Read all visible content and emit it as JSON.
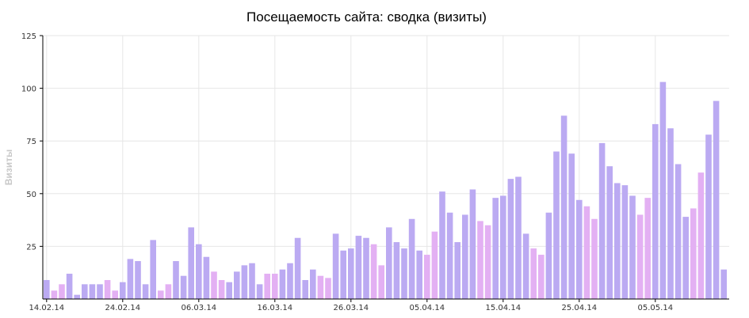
{
  "chart_data": {
    "type": "bar",
    "title": "Посещаемость сайта: сводка (визиты)",
    "ylabel": "Визиты",
    "xlabel": "",
    "ylim": [
      0,
      125
    ],
    "yticks": [
      "25",
      "50",
      "75",
      "100",
      "125"
    ],
    "grid": true,
    "legend": "none",
    "start_date": "14.02.14",
    "x_tick_labels": [
      {
        "index": 0,
        "label": "14.02.14",
        "color": "#333333"
      },
      {
        "index": 10,
        "label": "24.02.14",
        "color": "#333333"
      },
      {
        "index": 20,
        "label": "06.03.14",
        "color": "#333333"
      },
      {
        "index": 30,
        "label": "16.03.14",
        "color": "#c00000"
      },
      {
        "index": 40,
        "label": "26.03.14",
        "color": "#333333"
      },
      {
        "index": 50,
        "label": "05.04.14",
        "color": "#c00000"
      },
      {
        "index": 60,
        "label": "15.04.14",
        "color": "#333333"
      },
      {
        "index": 70,
        "label": "25.04.14",
        "color": "#333333"
      },
      {
        "index": 80,
        "label": "05.05.14",
        "color": "#333333"
      }
    ],
    "colors": {
      "weekday": "#bbaaf2",
      "weekend": "#e3b0f3"
    },
    "weekend_indices": [
      1,
      2,
      8,
      9,
      15,
      16,
      22,
      23,
      29,
      30,
      36,
      37,
      43,
      44,
      50,
      51,
      57,
      58,
      64,
      65,
      71,
      72,
      78,
      79,
      85,
      86
    ],
    "values": [
      9,
      4,
      7,
      12,
      2,
      7,
      7,
      7,
      9,
      4,
      8,
      19,
      18,
      7,
      28,
      4,
      7,
      18,
      11,
      34,
      26,
      20,
      13,
      9,
      8,
      13,
      16,
      17,
      7,
      12,
      12,
      14,
      17,
      29,
      9,
      14,
      11,
      10,
      31,
      23,
      24,
      30,
      29,
      26,
      16,
      34,
      27,
      24,
      38,
      23,
      21,
      32,
      51,
      41,
      27,
      40,
      52,
      37,
      35,
      48,
      49,
      57,
      58,
      31,
      24,
      21,
      41,
      70,
      87,
      69,
      47,
      44,
      38,
      74,
      63,
      55,
      54,
      49,
      40,
      48,
      83,
      103,
      81,
      64,
      39,
      43,
      60,
      78,
      94,
      14
    ]
  }
}
